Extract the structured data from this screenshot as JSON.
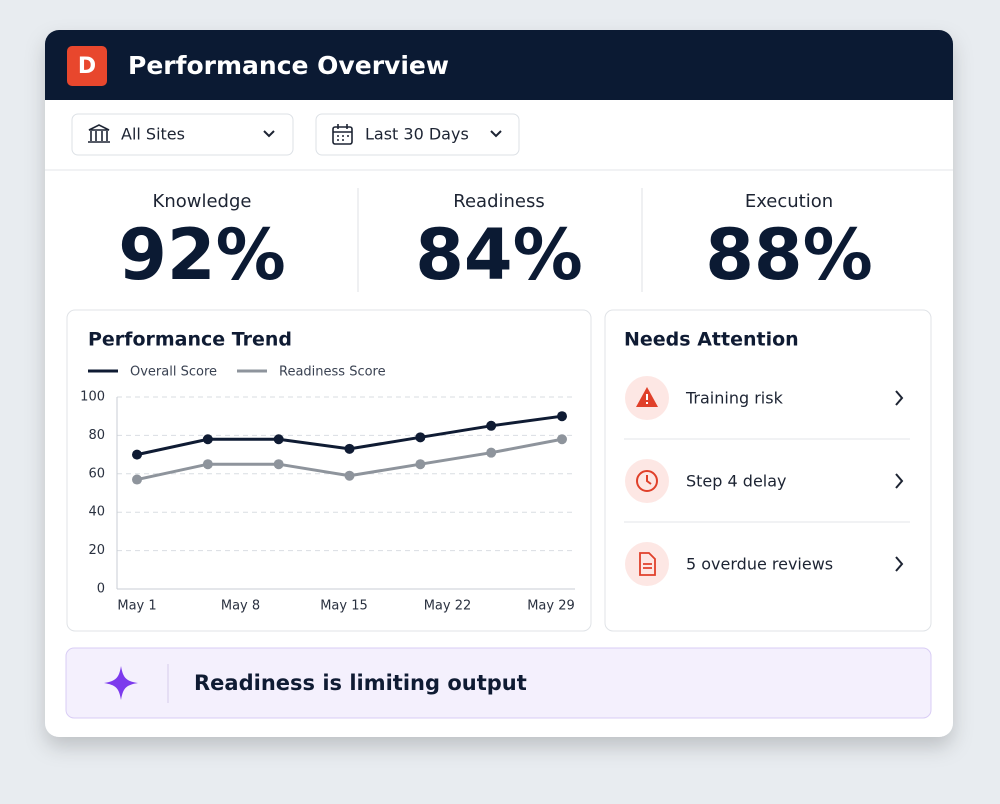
{
  "header": {
    "logo": "D",
    "title": "Performance Overview"
  },
  "filters": [
    "All Sites",
    "Last 30 Days"
  ],
  "kpis": [
    {
      "label": "Knowledge",
      "value": "92%"
    },
    {
      "label": "Readiness",
      "value": "84%"
    },
    {
      "label": "Execution",
      "value": "88%"
    }
  ],
  "chart_data": {
    "type": "line",
    "title": "Performance Trend",
    "xticks": [
      "May 1",
      "May 8",
      "May 15",
      "May 22",
      "May 29"
    ],
    "series": [
      {
        "name": "Overall Score",
        "color": "#0f1b33",
        "values": [
          70,
          78,
          78,
          73,
          79,
          85,
          90
        ]
      },
      {
        "name": "Readiness Score",
        "color": "#8e949c",
        "values": [
          57,
          65,
          65,
          59,
          65,
          71,
          78
        ]
      }
    ],
    "ylim": [
      0,
      100
    ],
    "yticks": [
      0,
      20,
      40,
      60,
      80,
      100
    ],
    "grid": true
  },
  "attention": {
    "title": "Needs Attention",
    "items": [
      "Training risk",
      "Step 4 delay",
      "5 overdue reviews"
    ]
  },
  "insight": "Readiness is limiting output"
}
